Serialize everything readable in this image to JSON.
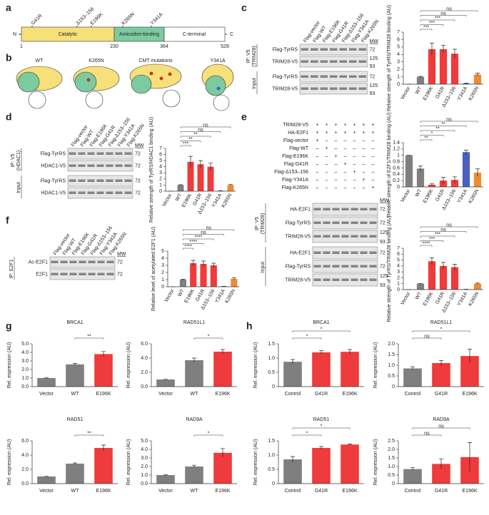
{
  "panel_labels": [
    "a",
    "b",
    "c",
    "d",
    "e",
    "f",
    "g",
    "h"
  ],
  "panel_a": {
    "n_term": "N",
    "c_term": "C",
    "domains": [
      "Catalytic",
      "Anticodon-binding",
      "C-terminal"
    ],
    "positions": [
      "1",
      "230",
      "364",
      "528"
    ],
    "mutations": [
      "G41R",
      "Δ153–156",
      "E196K",
      "K265N",
      "Y341A"
    ]
  },
  "panel_b": {
    "labels": [
      "WT",
      "K265N",
      "CMT mutations",
      "Y341A"
    ]
  },
  "blots": {
    "c": {
      "lanes": [
        "Flag-vector",
        "Flag-WT",
        "Flag-E196K",
        "Flag-G41R",
        "Flag-Δ153–156",
        "Flag-Y341A",
        "Flag-K265N"
      ],
      "mw_label": "MW",
      "groups": [
        {
          "label": [
            "IP: V5",
            "(TRIM28)"
          ],
          "rows": [
            {
              "name": "Flag-TyrRS",
              "mw": [
                "72"
              ]
            },
            {
              "name": "TRIM28-V5",
              "mw": [
                "125",
                "93"
              ]
            }
          ]
        },
        {
          "label": [
            "Input"
          ],
          "rows": [
            {
              "name": "Flag-TyrRS",
              "mw": [
                "72"
              ]
            },
            {
              "name": "TRIM28-V5",
              "mw": [
                "125",
                "93"
              ]
            }
          ]
        }
      ]
    },
    "d": {
      "lanes": [
        "Flag-vector",
        "Flag-WT",
        "Flag-E196K",
        "Flag-G41R",
        "Flag-Δ153–156",
        "Flag-Y341A",
        "Flag-K265N"
      ],
      "mw_label": "MW",
      "groups": [
        {
          "label": [
            "IP: V5",
            "(HDAC1)"
          ],
          "rows": [
            {
              "name": "Flag-TyrRS",
              "mw": [
                "72"
              ]
            },
            {
              "name": "HDAC1-V5",
              "mw": [
                "72"
              ]
            }
          ]
        },
        {
          "label": [
            "Input"
          ],
          "rows": [
            {
              "name": "Flag-TyrRS",
              "mw": [
                "72"
              ]
            },
            {
              "name": "HDAC1-V5",
              "mw": [
                "72"
              ]
            }
          ]
        }
      ]
    },
    "e": {
      "table_rows": [
        "TRIM28-V5",
        "HA-E2F1",
        "Flag-vector",
        "Flag-WT",
        "Flag-E196K",
        "Flag-G41R",
        "Flag-Δ153–156",
        "Flag-Y341A",
        "Flag-K265N"
      ],
      "signs": [
        [
          "+",
          "+",
          "+",
          "+",
          "+",
          "+",
          "+"
        ],
        [
          "+",
          "+",
          "+",
          "+",
          "+",
          "+",
          "+"
        ],
        [
          "+",
          "–",
          "–",
          "–",
          "–",
          "–",
          "–"
        ],
        [
          "–",
          "+",
          "–",
          "–",
          "–",
          "–",
          "–"
        ],
        [
          "–",
          "–",
          "+",
          "–",
          "–",
          "–",
          "–"
        ],
        [
          "–",
          "–",
          "–",
          "+",
          "–",
          "–",
          "–"
        ],
        [
          "–",
          "–",
          "–",
          "–",
          "+",
          "–",
          "–"
        ],
        [
          "–",
          "–",
          "–",
          "–",
          "–",
          "+",
          "–"
        ],
        [
          "–",
          "–",
          "–",
          "–",
          "–",
          "–",
          "+"
        ]
      ],
      "mw_label": "MW",
      "groups": [
        {
          "label": [
            "IP: V5",
            "(TRIM28)"
          ],
          "rows": [
            {
              "name": "HA-E2F1",
              "mw": [
                "72"
              ]
            },
            {
              "name": "Flag-TyrRS",
              "mw": [
                "72"
              ]
            },
            {
              "name": "TRIM28-V5",
              "mw": [
                "125",
                "93"
              ]
            }
          ]
        },
        {
          "label": [
            "Input"
          ],
          "rows": [
            {
              "name": "HA-E2F1",
              "mw": [
                "72"
              ]
            },
            {
              "name": "Flag-TyrRS",
              "mw": [
                "72"
              ]
            },
            {
              "name": "TRIM28-V5",
              "mw": [
                "125",
                "93"
              ]
            }
          ]
        }
      ]
    },
    "f": {
      "lanes": [
        "Flag-vector",
        "Flag-WT",
        "Flag-E196K",
        "Flag-G41R",
        "Flag-Δ153–156",
        "Flag-Y341A",
        "Flag-K265N"
      ],
      "mw_label": "MW",
      "groups": [
        {
          "label": [
            "IP: E2F1"
          ],
          "rows": [
            {
              "name": "Ac-E2F1",
              "mw": [
                "72"
              ]
            },
            {
              "name": "E2F1",
              "mw": [
                "72"
              ]
            }
          ]
        }
      ]
    }
  },
  "chart_data": [
    {
      "type": "bar",
      "ylabel": "Relative strength of TyrRS/TRIM28 binding (AU)",
      "categories": [
        "Vector",
        "WT",
        "E196K",
        "G41R",
        "Δ153–156",
        "Y341A",
        "K265N"
      ],
      "values": [
        0,
        1,
        4.7,
        4.7,
        4.1,
        0.1,
        1.3
      ],
      "errors": [
        0,
        0.05,
        0.8,
        0.5,
        0.6,
        0.05,
        0.2
      ],
      "colors": [
        "#7f7f7f",
        "#7f7f7f",
        "#ef3b3b",
        "#ef3b3b",
        "#ef3b3b",
        "#4a5fc1",
        "#f28a30"
      ],
      "ylim": [
        0,
        7
      ],
      "yticks": [
        0,
        1,
        2,
        3,
        4,
        5,
        6,
        7
      ],
      "annotations": [
        "***",
        "***",
        "***",
        "ns",
        "ns"
      ]
    },
    {
      "type": "bar",
      "ylabel": "Relative strength of TyrRS/HDAC1 binding (AU)",
      "categories": [
        "Vector",
        "WT",
        "E196K",
        "G41R",
        "Δ153–156",
        "Y341A",
        "K265N"
      ],
      "values": [
        0,
        1,
        4.8,
        4.4,
        4.0,
        0.05,
        1.0
      ],
      "errors": [
        0,
        0.05,
        0.9,
        0.6,
        0.6,
        0.02,
        0.1
      ],
      "colors": [
        "#7f7f7f",
        "#7f7f7f",
        "#ef3b3b",
        "#ef3b3b",
        "#ef3b3b",
        "#4a5fc1",
        "#f28a30"
      ],
      "ylim": [
        0,
        7
      ],
      "yticks": [
        0,
        1,
        2,
        3,
        4,
        5,
        6,
        7
      ],
      "annotations": [
        "***",
        "**",
        "**",
        "ns",
        "ns"
      ]
    },
    {
      "type": "bar",
      "ylabel": "Relative strength of E2F1/TRIM28 binding (AU)",
      "categories": [
        "Vector",
        "WT",
        "E196K",
        "G41R",
        "Δ153–156",
        "Y341A",
        "K265N"
      ],
      "values": [
        1.0,
        0.58,
        0.07,
        0.2,
        0.22,
        1.1,
        0.45
      ],
      "errors": [
        0,
        0.08,
        0.03,
        0.1,
        0.1,
        0.06,
        0.12
      ],
      "colors": [
        "#7f7f7f",
        "#7f7f7f",
        "#ef3b3b",
        "#ef3b3b",
        "#ef3b3b",
        "#4a5fc1",
        "#f28a30"
      ],
      "ylim": [
        0,
        1.4
      ],
      "yticks": [
        0,
        0.2,
        0.4,
        0.6,
        0.8,
        1,
        1.2,
        1.4
      ],
      "annotations": [
        "**",
        "*",
        "**",
        "**",
        "ns"
      ]
    },
    {
      "type": "bar",
      "ylabel": "Relative strength of TyrRS/TRIM28 binding (AU)",
      "categories": [
        "Vector",
        "WT",
        "E196K",
        "G41R",
        "Δ153–156",
        "Y341A",
        "K265N"
      ],
      "values": [
        0,
        1,
        4.8,
        4.0,
        3.8,
        0.05,
        1.0
      ],
      "errors": [
        0,
        0.05,
        0.6,
        0.6,
        0.5,
        0.02,
        0.1
      ],
      "colors": [
        "#7f7f7f",
        "#7f7f7f",
        "#ef3b3b",
        "#ef3b3b",
        "#ef3b3b",
        "#4a5fc1",
        "#f28a30"
      ],
      "ylim": [
        0,
        7
      ],
      "yticks": [
        0,
        1,
        2,
        3,
        4,
        5,
        6,
        7
      ],
      "annotations": [
        "****",
        "***",
        "***",
        "ns",
        "ns"
      ]
    },
    {
      "type": "bar",
      "ylabel": "Relative level of acetylated E2F1 (AU)",
      "categories": [
        "Vector",
        "WT",
        "E196K",
        "G41R",
        "Δ153–156",
        "Y341A",
        "K265N"
      ],
      "values": [
        0,
        1,
        3.3,
        3.2,
        3.0,
        0.05,
        1.1
      ],
      "errors": [
        0,
        0.05,
        0.4,
        0.4,
        0.3,
        0.02,
        0.15
      ],
      "colors": [
        "#7f7f7f",
        "#7f7f7f",
        "#ef3b3b",
        "#ef3b3b",
        "#ef3b3b",
        "#4a5fc1",
        "#f28a30"
      ],
      "ylim": [
        0,
        5
      ],
      "yticks": [
        0,
        1,
        2,
        3,
        4,
        5
      ],
      "annotations": [
        "****",
        "****",
        "****",
        "ns",
        "ns"
      ]
    },
    {
      "type": "bar",
      "title": "BRCA1",
      "ylabel": "Rel. expression (AU)",
      "categories": [
        "Vector",
        "WT",
        "E196K"
      ],
      "values": [
        1,
        2.6,
        3.8
      ],
      "errors": [
        0.02,
        0.1,
        0.3
      ],
      "colors": [
        "#7f7f7f",
        "#7f7f7f",
        "#ef3b3b"
      ],
      "ylim": [
        0,
        5
      ],
      "yticks": [
        {
          "value": 0,
          "label": "0.0"
        },
        {
          "value": 1,
          "label": "1.0"
        },
        {
          "value": 2,
          "label": "2.0"
        },
        {
          "value": 3,
          "label": "3.0"
        },
        {
          "value": 4,
          "label": "4.0"
        },
        {
          "value": 5,
          "label": "5.0"
        }
      ],
      "annotations": [
        "**"
      ]
    },
    {
      "type": "bar",
      "title": "RAD51L1",
      "ylabel": "Rel. expression (AU)",
      "categories": [
        "Vector",
        "WT",
        "E196K"
      ],
      "values": [
        1,
        3.7,
        4.9
      ],
      "errors": [
        0.02,
        0.3,
        0.3
      ],
      "colors": [
        "#7f7f7f",
        "#7f7f7f",
        "#ef3b3b"
      ],
      "ylim": [
        0,
        6
      ],
      "yticks": [
        {
          "value": 0,
          "label": "0.0"
        },
        {
          "value": 2,
          "label": "2.0"
        },
        {
          "value": 4,
          "label": "4.0"
        },
        {
          "value": 6,
          "label": "6.0"
        }
      ],
      "annotations": [
        "*"
      ]
    },
    {
      "type": "bar",
      "title": "RAD51",
      "ylabel": "Rel. expression (AU)",
      "categories": [
        "Vector",
        "WT",
        "E196K"
      ],
      "values": [
        1,
        2.8,
        5.0
      ],
      "errors": [
        0.02,
        0.1,
        0.4
      ],
      "colors": [
        "#7f7f7f",
        "#7f7f7f",
        "#ef3b3b"
      ],
      "ylim": [
        0,
        6
      ],
      "yticks": [
        {
          "value": 0,
          "label": "0.0"
        },
        {
          "value": 2,
          "label": "2.0"
        },
        {
          "value": 4,
          "label": "4.0"
        },
        {
          "value": 6,
          "label": "6.0"
        }
      ],
      "annotations": [
        "**"
      ]
    },
    {
      "type": "bar",
      "title": "RAD9A",
      "ylabel": "Rel. expression (AU)",
      "categories": [
        "Vector",
        "WT",
        "E196K"
      ],
      "values": [
        1,
        2.0,
        3.6
      ],
      "errors": [
        0.02,
        0.15,
        0.5
      ],
      "colors": [
        "#7f7f7f",
        "#7f7f7f",
        "#ef3b3b"
      ],
      "ylim": [
        0,
        5
      ],
      "yticks": [
        {
          "value": 0,
          "label": "0.0"
        },
        {
          "value": 1,
          "label": "1.0"
        },
        {
          "value": 2,
          "label": "2.0"
        },
        {
          "value": 3,
          "label": "3.0"
        },
        {
          "value": 4,
          "label": "4.0"
        },
        {
          "value": 5,
          "label": "5.0"
        }
      ],
      "annotations": [
        "*"
      ]
    },
    {
      "type": "bar",
      "title": "BRCA1",
      "ylabel": "Rel. expression (AU)",
      "categories": [
        "Control",
        "G41R",
        "E196K"
      ],
      "values": [
        0.87,
        1.2,
        1.22
      ],
      "errors": [
        0.08,
        0.06,
        0.08
      ],
      "colors": [
        "#7f7f7f",
        "#ef3b3b",
        "#ef3b3b"
      ],
      "ylim": [
        0,
        1.5
      ],
      "yticks": [
        0,
        0.5,
        {
          "value": 1,
          "label": "1.0"
        },
        1.5
      ],
      "annotations": [
        "*",
        "*"
      ]
    },
    {
      "type": "bar",
      "title": "RAD51L1",
      "ylabel": "Rel. expression (AU)",
      "categories": [
        "Control",
        "G41R",
        "E196K"
      ],
      "values": [
        0.85,
        1.1,
        1.43
      ],
      "errors": [
        0.08,
        0.12,
        0.32
      ],
      "colors": [
        "#7f7f7f",
        "#ef3b3b",
        "#ef3b3b"
      ],
      "ylim": [
        0,
        2
      ],
      "yticks": [
        0,
        0.5,
        {
          "value": 1,
          "label": "1.0"
        },
        1.5,
        {
          "value": 2,
          "label": "2.0"
        }
      ],
      "annotations": [
        "ns",
        "*"
      ]
    },
    {
      "type": "bar",
      "title": "RAD51",
      "ylabel": "Rel. expression (AU)",
      "categories": [
        "Control",
        "G41R",
        "E196K"
      ],
      "values": [
        0.85,
        1.25,
        1.37
      ],
      "errors": [
        0.1,
        0.05,
        0.02
      ],
      "colors": [
        "#7f7f7f",
        "#ef3b3b",
        "#ef3b3b"
      ],
      "ylim": [
        0,
        1.5
      ],
      "yticks": [
        0,
        0.5,
        {
          "value": 1,
          "label": "1.0"
        },
        1.5
      ],
      "annotations": [
        "*",
        "*"
      ]
    },
    {
      "type": "bar",
      "title": "RAD9A",
      "ylabel": "Rel. expression (AU)",
      "categories": [
        "Control",
        "G41R",
        "E196K"
      ],
      "values": [
        0.85,
        1.15,
        1.55
      ],
      "errors": [
        0.08,
        0.3,
        0.85
      ],
      "colors": [
        "#7f7f7f",
        "#ef3b3b",
        "#ef3b3b"
      ],
      "ylim": [
        0,
        2.5
      ],
      "yticks": [
        0,
        0.5,
        {
          "value": 1,
          "label": "1.0"
        },
        1.5,
        {
          "value": 2,
          "label": "2.0"
        },
        2.5
      ],
      "annotations": [
        "ns",
        "ns"
      ]
    }
  ]
}
